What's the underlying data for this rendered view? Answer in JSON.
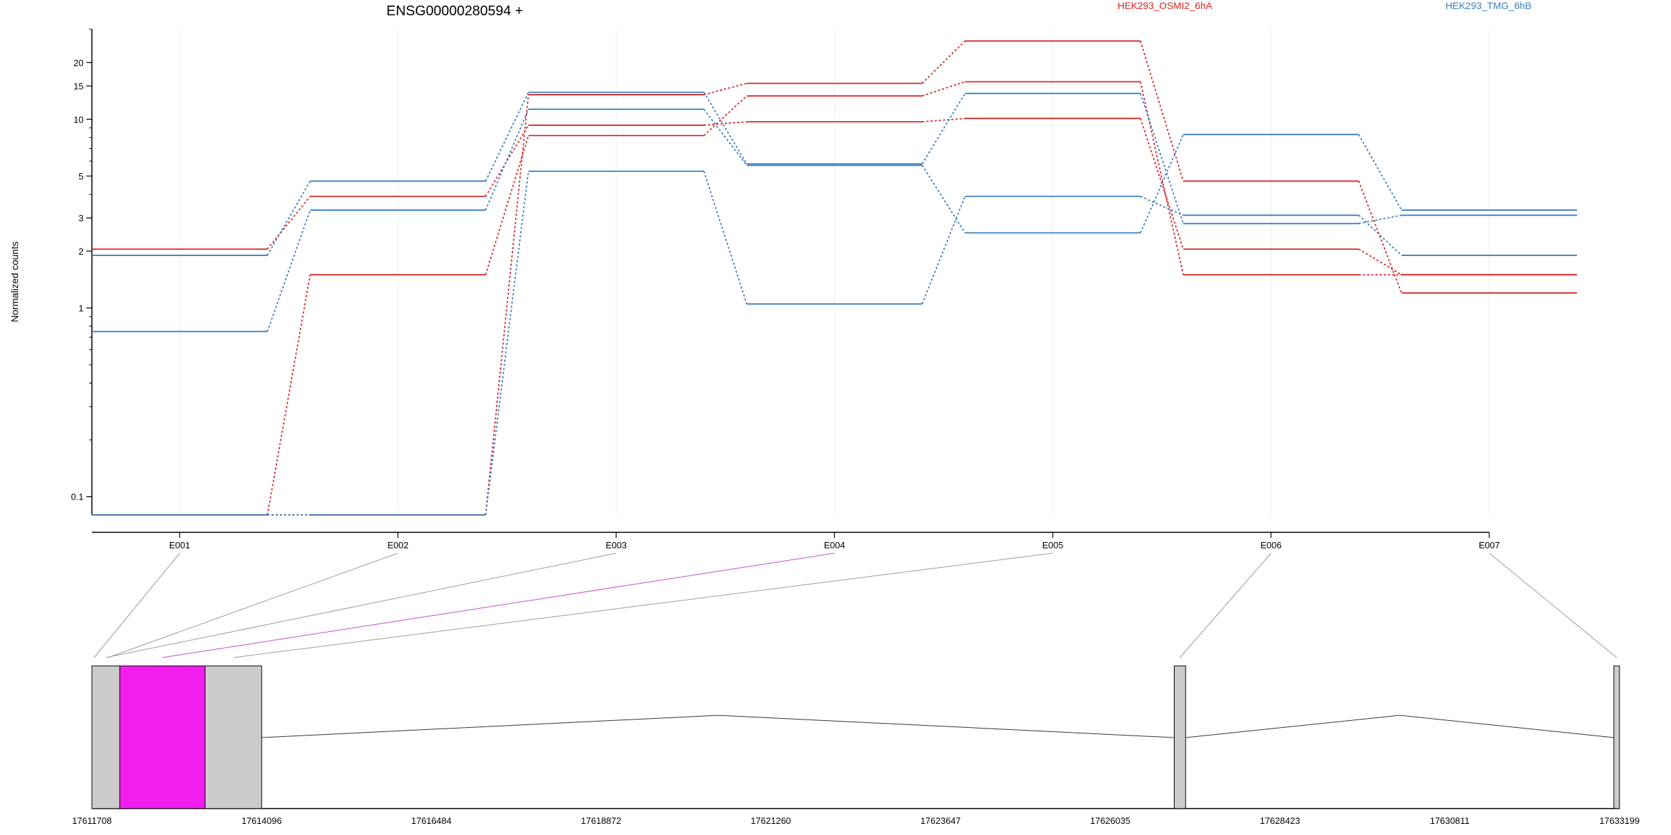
{
  "chart_data": {
    "type": "line",
    "title": "ENSG00000280594 +",
    "ylabel": "Normalized counts",
    "xlabel": "",
    "y_scale": "log",
    "y_ticks": [
      0.1,
      1,
      2,
      3,
      5,
      10,
      15,
      20
    ],
    "y_tick_labels": [
      "0.1",
      "1",
      "2",
      "3",
      "5",
      "10",
      "15",
      "20"
    ],
    "ylim": [
      0.08,
      30
    ],
    "grid": false,
    "legend_position": "top-right",
    "colors": {
      "HEK293_OSMI2_6hA": "#d62728",
      "HEK293_TMG_6hB": "#3a7dbf",
      "highlight": "#f21ef0",
      "exon_fill": "#cccccc"
    },
    "legend": [
      "HEK293_OSMI2_6hA",
      "HEK293_TMG_6hB"
    ],
    "categories": [
      "E001",
      "E002",
      "E003",
      "E004",
      "E005",
      "E006",
      "E007"
    ],
    "series": [
      {
        "group": "HEK293_OSMI2_6hA",
        "values": [
          2.05,
          3.9,
          9.3,
          9.7,
          10.1,
          2.05,
          1.5
        ]
      },
      {
        "group": "HEK293_OSMI2_6hA",
        "values": [
          0.08,
          1.5,
          8.2,
          13.3,
          15.8,
          1.5,
          1.5
        ]
      },
      {
        "group": "HEK293_OSMI2_6hA",
        "values": [
          0.08,
          0.08,
          13.5,
          15.5,
          26.0,
          4.7,
          1.2
        ]
      },
      {
        "group": "HEK293_OSMI2_6hA",
        "values": null
      },
      {
        "group": "HEK293_TMG_6hB",
        "values": [
          1.9,
          4.7,
          13.9,
          5.8,
          13.7,
          2.8,
          3.1
        ]
      },
      {
        "group": "HEK293_TMG_6hB",
        "values": [
          0.75,
          3.3,
          11.3,
          5.7,
          2.5,
          8.3,
          3.3
        ]
      },
      {
        "group": "HEK293_TMG_6hB",
        "values": [
          0.08,
          0.08,
          5.3,
          1.05,
          3.9,
          3.1,
          1.9
        ]
      }
    ],
    "genomic_axis": {
      "tick_labels": [
        "17611708",
        "17614096",
        "17616484",
        "17618872",
        "17621260",
        "17623647",
        "17626035",
        "17628423",
        "17630811",
        "17633199"
      ],
      "range": [
        17611708,
        17633199
      ],
      "exons": [
        {
          "id": "E001",
          "start": 17611708,
          "end": 17611770
        },
        {
          "id": "E002",
          "start": 17611770,
          "end": 17612100
        },
        {
          "id": "E003",
          "start": 17611708,
          "end": 17612100
        },
        {
          "id": "E004",
          "start": 17612100,
          "end": 17613300,
          "highlight": true
        },
        {
          "id": "E005",
          "start": 17613300,
          "end": 17614096
        },
        {
          "id": "E006",
          "start": 17626935,
          "end": 17627095
        },
        {
          "id": "E007",
          "start": 17633120,
          "end": 17633199
        }
      ],
      "introns": [
        {
          "start": 17614096,
          "end": 17626935
        },
        {
          "start": 17627095,
          "end": 17633120
        }
      ]
    }
  }
}
